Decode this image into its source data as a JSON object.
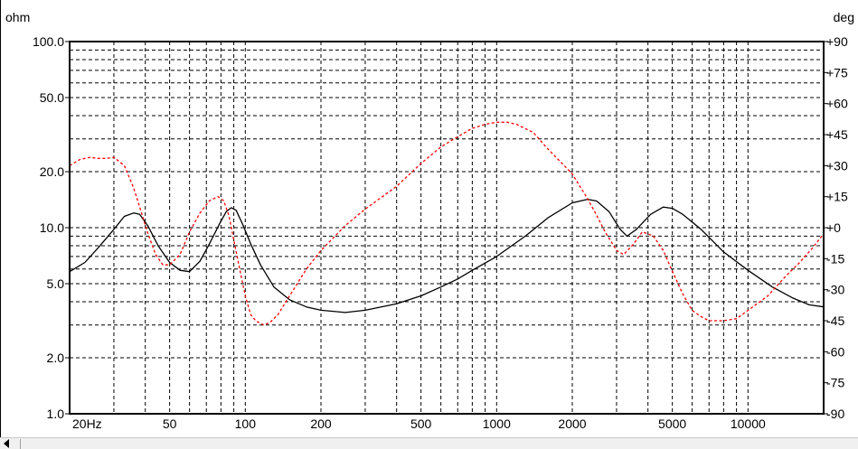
{
  "chart_data": {
    "type": "line",
    "left_unit": "ohm",
    "right_unit": "deg",
    "x_scale": "log",
    "xlim": [
      20,
      20000
    ],
    "x_ticks": [
      {
        "v": 20,
        "label": "20Hz"
      },
      {
        "v": 50,
        "label": "50"
      },
      {
        "v": 100,
        "label": "100"
      },
      {
        "v": 200,
        "label": "200"
      },
      {
        "v": 500,
        "label": "500"
      },
      {
        "v": 1000,
        "label": "1000"
      },
      {
        "v": 2000,
        "label": "2000"
      },
      {
        "v": 5000,
        "label": "5000"
      },
      {
        "v": 10000,
        "label": "10000"
      }
    ],
    "y_left_scale": "log",
    "y_left_lim": [
      1,
      100
    ],
    "y_left_ticks": [
      {
        "v": 100,
        "label": "100.0"
      },
      {
        "v": 50,
        "label": "50.0"
      },
      {
        "v": 20,
        "label": "20.0"
      },
      {
        "v": 10,
        "label": "10.0"
      },
      {
        "v": 5,
        "label": "5.0"
      },
      {
        "v": 2,
        "label": "2.0"
      },
      {
        "v": 1,
        "label": "1.0"
      }
    ],
    "y_right_lim": [
      -90,
      90
    ],
    "y_right_ticks": [
      {
        "v": 90,
        "label": "+90"
      },
      {
        "v": 75,
        "label": "+75"
      },
      {
        "v": 60,
        "label": "+60"
      },
      {
        "v": 45,
        "label": "+45"
      },
      {
        "v": 30,
        "label": "+30"
      },
      {
        "v": 15,
        "label": "+15"
      },
      {
        "v": 0,
        "label": "+0"
      },
      {
        "v": -15,
        "label": "-15"
      },
      {
        "v": -30,
        "label": "-30"
      },
      {
        "v": -45,
        "label": "-45"
      },
      {
        "v": -60,
        "label": "-60"
      },
      {
        "v": -75,
        "label": "-75"
      },
      {
        "v": -90,
        "label": "-90"
      }
    ],
    "grid": true,
    "series": [
      {
        "axis": "left",
        "color": "#000000",
        "style": "solid",
        "points": [
          [
            20,
            5.8
          ],
          [
            23,
            6.5
          ],
          [
            26,
            7.8
          ],
          [
            30,
            9.8
          ],
          [
            33,
            11.5
          ],
          [
            36,
            12
          ],
          [
            38,
            11.8
          ],
          [
            41,
            10.2
          ],
          [
            45,
            8
          ],
          [
            50,
            6.5
          ],
          [
            55,
            5.9
          ],
          [
            60,
            5.8
          ],
          [
            66,
            6.6
          ],
          [
            72,
            8.2
          ],
          [
            79,
            10.5
          ],
          [
            84,
            12.2
          ],
          [
            88,
            12.8
          ],
          [
            92,
            12.4
          ],
          [
            98,
            10.3
          ],
          [
            105,
            8.2
          ],
          [
            115,
            6.3
          ],
          [
            130,
            4.8
          ],
          [
            150,
            4.1
          ],
          [
            175,
            3.75
          ],
          [
            200,
            3.6
          ],
          [
            250,
            3.5
          ],
          [
            300,
            3.6
          ],
          [
            400,
            3.9
          ],
          [
            500,
            4.3
          ],
          [
            600,
            4.8
          ],
          [
            700,
            5.3
          ],
          [
            800,
            5.9
          ],
          [
            1000,
            7
          ],
          [
            1300,
            9
          ],
          [
            1600,
            11.3
          ],
          [
            2000,
            13.6
          ],
          [
            2300,
            14.2
          ],
          [
            2500,
            13.9
          ],
          [
            2800,
            12.2
          ],
          [
            3100,
            9.8
          ],
          [
            3300,
            9
          ],
          [
            3600,
            9.8
          ],
          [
            4100,
            11.8
          ],
          [
            4600,
            12.9
          ],
          [
            5000,
            12.7
          ],
          [
            5500,
            11.8
          ],
          [
            6500,
            9.8
          ],
          [
            8000,
            7.4
          ],
          [
            10000,
            5.9
          ],
          [
            12500,
            4.8
          ],
          [
            15000,
            4.2
          ],
          [
            17500,
            3.85
          ],
          [
            20000,
            3.75
          ]
        ]
      },
      {
        "axis": "right",
        "color": "#ff0000",
        "style": "dashed",
        "points": [
          [
            20,
            30
          ],
          [
            22,
            33
          ],
          [
            24,
            34
          ],
          [
            26,
            33.5
          ],
          [
            28,
            33.5
          ],
          [
            30,
            34
          ],
          [
            33,
            30
          ],
          [
            36,
            19
          ],
          [
            38,
            10
          ],
          [
            41,
            -3
          ],
          [
            44,
            -13
          ],
          [
            47,
            -18
          ],
          [
            50,
            -18
          ],
          [
            55,
            -13
          ],
          [
            60,
            -2
          ],
          [
            66,
            7
          ],
          [
            72,
            13
          ],
          [
            78,
            15
          ],
          [
            82,
            13
          ],
          [
            86,
            6
          ],
          [
            90,
            -6
          ],
          [
            95,
            -20
          ],
          [
            100,
            -33
          ],
          [
            105,
            -42
          ],
          [
            110,
            -45
          ],
          [
            118,
            -47
          ],
          [
            125,
            -46
          ],
          [
            135,
            -42
          ],
          [
            150,
            -33
          ],
          [
            175,
            -20
          ],
          [
            200,
            -11
          ],
          [
            250,
            1
          ],
          [
            300,
            9
          ],
          [
            400,
            20
          ],
          [
            500,
            31
          ],
          [
            600,
            39
          ],
          [
            700,
            44
          ],
          [
            800,
            48
          ],
          [
            900,
            50
          ],
          [
            1000,
            51
          ],
          [
            1100,
            51
          ],
          [
            1200,
            50
          ],
          [
            1400,
            46
          ],
          [
            1600,
            38
          ],
          [
            2000,
            26
          ],
          [
            2300,
            14
          ],
          [
            2500,
            6
          ],
          [
            2700,
            -2
          ],
          [
            3000,
            -11
          ],
          [
            3200,
            -13
          ],
          [
            3500,
            -8
          ],
          [
            3800,
            -2
          ],
          [
            4200,
            -4
          ],
          [
            4600,
            -11
          ],
          [
            5000,
            -21
          ],
          [
            5500,
            -32
          ],
          [
            6000,
            -40
          ],
          [
            6500,
            -43
          ],
          [
            7000,
            -45
          ],
          [
            8000,
            -45
          ],
          [
            9000,
            -44
          ],
          [
            10000,
            -40
          ],
          [
            12000,
            -33
          ],
          [
            14000,
            -24
          ],
          [
            16000,
            -17
          ],
          [
            18000,
            -10
          ],
          [
            20000,
            -3
          ]
        ]
      }
    ]
  }
}
